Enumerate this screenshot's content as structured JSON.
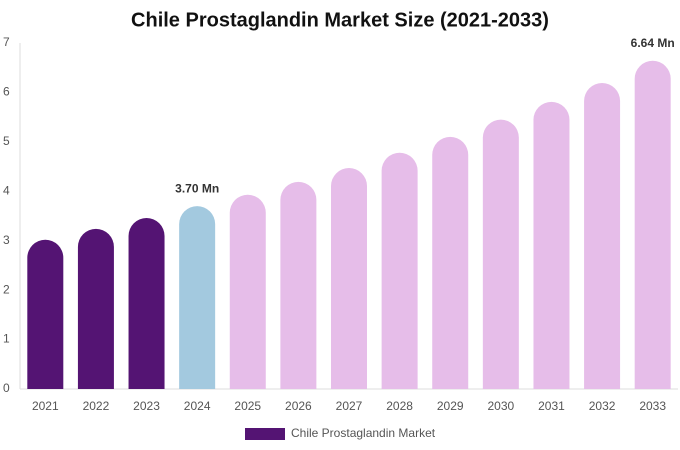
{
  "chart_data": {
    "type": "bar",
    "title": "Chile Prostaglandin Market Size (2021-2033)",
    "categories": [
      "2021",
      "2022",
      "2023",
      "2024",
      "2025",
      "2026",
      "2027",
      "2028",
      "2029",
      "2030",
      "2031",
      "2032",
      "2033"
    ],
    "series": [
      {
        "name": "Chile Prostaglandin Market",
        "color": "#541473",
        "bar_colors": [
          "#541473",
          "#541473",
          "#541473",
          "#a3c9df",
          "#e6bde9",
          "#e6bde9",
          "#e6bde9",
          "#e6bde9",
          "#e6bde9",
          "#e6bde9",
          "#e6bde9",
          "#e6bde9",
          "#e6bde9"
        ],
        "values": [
          3.02,
          3.24,
          3.46,
          3.7,
          3.93,
          4.19,
          4.47,
          4.78,
          5.1,
          5.45,
          5.81,
          6.19,
          6.64
        ],
        "value_labels": [
          null,
          null,
          null,
          "3.70 Mn",
          null,
          null,
          null,
          null,
          null,
          null,
          null,
          null,
          "6.64 Mn"
        ]
      }
    ],
    "ylim": [
      0,
      7
    ],
    "yticks": [
      0,
      1,
      2,
      3,
      4,
      5,
      6,
      7
    ],
    "grid": false
  }
}
